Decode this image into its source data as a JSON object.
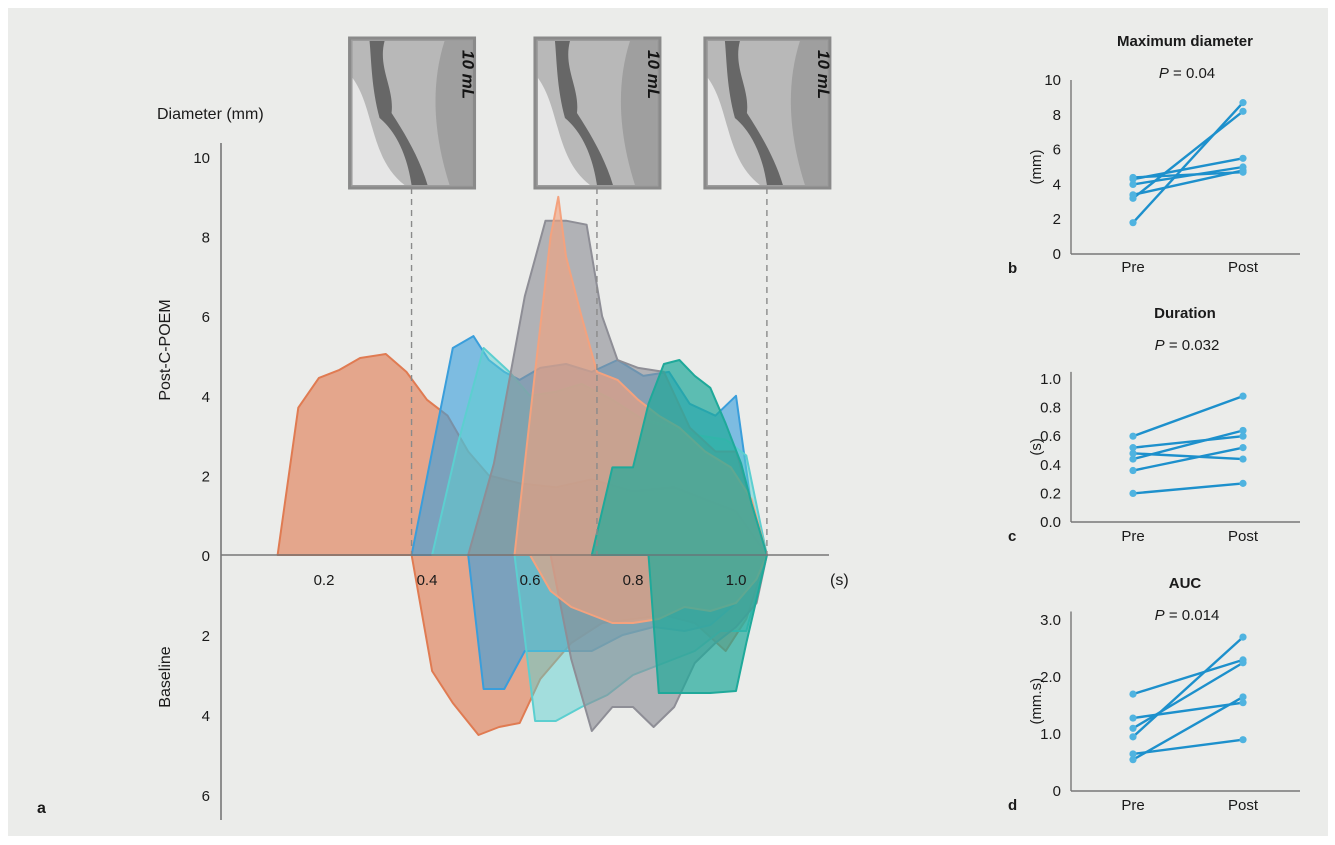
{
  "colors": {
    "panel_bg": "#ebecea",
    "axis": "#777777",
    "guide": "#8a8a8a",
    "pair_line": "#1d90cc",
    "pair_dot": "#4fb3e0"
  },
  "panel_letters": {
    "a": "a",
    "b": "b",
    "c": "c",
    "d": "d"
  },
  "fluoro_frames": [
    {
      "label": "10 mL",
      "time_s": 0.37
    },
    {
      "label": "10 mL",
      "time_s": 0.73
    },
    {
      "label": "10 mL",
      "time_s": 1.06
    }
  ],
  "chart_data": [
    {
      "panel": "a",
      "type": "area",
      "ylabel": "Diameter (mm)",
      "xlabel": "(s)",
      "upper_label": "Post-C-POEM",
      "lower_label": "Baseline",
      "x_ticks": [
        0.2,
        0.4,
        0.6,
        0.8,
        1.0
      ],
      "x_tick_labels": [
        "0.2",
        "0.4",
        "0.6",
        "0.8",
        "1.0"
      ],
      "xlim": [
        0.0,
        1.16
      ],
      "y_ticks_up": [
        0,
        2,
        4,
        6,
        8,
        10
      ],
      "y_ticks_down": [
        2,
        4,
        6
      ],
      "ylim_up": [
        0,
        10
      ],
      "ylim_down": [
        0,
        6.5
      ],
      "series": [
        {
          "color": "#e07b52",
          "opacity": 0.62,
          "post": [
            [
              0.11,
              0
            ],
            [
              0.15,
              3.7
            ],
            [
              0.19,
              4.45
            ],
            [
              0.23,
              4.65
            ],
            [
              0.27,
              4.95
            ],
            [
              0.32,
              5.05
            ],
            [
              0.36,
              4.6
            ],
            [
              0.4,
              3.9
            ],
            [
              0.44,
              3.5
            ],
            [
              0.48,
              2.6
            ],
            [
              0.52,
              2.0
            ],
            [
              0.58,
              1.8
            ],
            [
              0.65,
              1.7
            ],
            [
              0.72,
              1.9
            ],
            [
              0.8,
              1.6
            ],
            [
              0.88,
              1.7
            ],
            [
              0.96,
              1.3
            ],
            [
              1.0,
              1.1
            ],
            [
              1.06,
              0
            ]
          ],
          "base": [
            [
              0.37,
              0
            ],
            [
              0.41,
              2.9
            ],
            [
              0.45,
              3.7
            ],
            [
              0.5,
              4.5
            ],
            [
              0.54,
              4.3
            ],
            [
              0.58,
              4.2
            ],
            [
              0.62,
              3.1
            ],
            [
              0.68,
              2.2
            ],
            [
              0.74,
              1.7
            ],
            [
              0.8,
              1.6
            ],
            [
              0.86,
              1.5
            ],
            [
              0.92,
              1.7
            ],
            [
              0.98,
              2.4
            ],
            [
              1.02,
              1.6
            ],
            [
              1.06,
              0
            ]
          ]
        },
        {
          "color": "#3a9edb",
          "opacity": 0.62,
          "post": [
            [
              0.37,
              0
            ],
            [
              0.41,
              2.6
            ],
            [
              0.45,
              5.2
            ],
            [
              0.49,
              5.5
            ],
            [
              0.52,
              4.9
            ],
            [
              0.55,
              4.6
            ],
            [
              0.58,
              4.4
            ],
            [
              0.62,
              4.7
            ],
            [
              0.67,
              4.8
            ],
            [
              0.72,
              4.6
            ],
            [
              0.77,
              4.9
            ],
            [
              0.82,
              4.5
            ],
            [
              0.87,
              4.6
            ],
            [
              0.91,
              3.8
            ],
            [
              0.96,
              3.5
            ],
            [
              1.0,
              4.0
            ],
            [
              1.03,
              1.2
            ],
            [
              1.06,
              0
            ]
          ],
          "base": [
            [
              0.48,
              0
            ],
            [
              0.51,
              3.35
            ],
            [
              0.55,
              3.35
            ],
            [
              0.59,
              2.4
            ],
            [
              0.65,
              2.4
            ],
            [
              0.72,
              2.4
            ],
            [
              0.78,
              2.0
            ],
            [
              0.84,
              1.8
            ],
            [
              0.9,
              1.9
            ],
            [
              0.95,
              1.75
            ],
            [
              1.0,
              1.2
            ],
            [
              1.04,
              0.6
            ],
            [
              1.06,
              0
            ]
          ]
        },
        {
          "color": "#5ccfd0",
          "opacity": 0.5,
          "post": [
            [
              0.41,
              0
            ],
            [
              0.46,
              2.8
            ],
            [
              0.51,
              5.2
            ],
            [
              0.56,
              4.6
            ],
            [
              0.6,
              4.0
            ],
            [
              0.65,
              4.1
            ],
            [
              0.7,
              4.3
            ],
            [
              0.76,
              3.9
            ],
            [
              0.82,
              3.4
            ],
            [
              0.88,
              3.2
            ],
            [
              0.93,
              3.0
            ],
            [
              0.98,
              2.9
            ],
            [
              1.02,
              2.5
            ],
            [
              1.06,
              0
            ]
          ],
          "base": [
            [
              0.57,
              0
            ],
            [
              0.61,
              4.15
            ],
            [
              0.65,
              4.15
            ],
            [
              0.7,
              3.8
            ],
            [
              0.75,
              3.5
            ],
            [
              0.8,
              3.0
            ],
            [
              0.86,
              2.7
            ],
            [
              0.92,
              2.4
            ],
            [
              0.97,
              1.9
            ],
            [
              1.02,
              1.9
            ],
            [
              1.06,
              0
            ]
          ]
        },
        {
          "color": "#8e8e96",
          "opacity": 0.62,
          "post": [
            [
              0.48,
              0
            ],
            [
              0.53,
              2.3
            ],
            [
              0.59,
              6.5
            ],
            [
              0.63,
              8.4
            ],
            [
              0.67,
              8.4
            ],
            [
              0.71,
              8.3
            ],
            [
              0.74,
              6.0
            ],
            [
              0.77,
              4.9
            ],
            [
              0.81,
              4.7
            ],
            [
              0.86,
              4.6
            ],
            [
              0.91,
              3.2
            ],
            [
              0.96,
              2.6
            ],
            [
              1.0,
              2.6
            ],
            [
              1.03,
              1.3
            ],
            [
              1.06,
              0
            ]
          ],
          "base": [
            [
              0.64,
              0
            ],
            [
              0.68,
              2.6
            ],
            [
              0.72,
              4.4
            ],
            [
              0.76,
              3.8
            ],
            [
              0.8,
              3.8
            ],
            [
              0.84,
              4.3
            ],
            [
              0.88,
              3.8
            ],
            [
              0.92,
              2.7
            ],
            [
              0.96,
              2.2
            ],
            [
              1.0,
              1.8
            ],
            [
              1.04,
              1.2
            ],
            [
              1.06,
              0
            ]
          ]
        },
        {
          "color": "#f4a27e",
          "opacity": 0.62,
          "post": [
            [
              0.57,
              0
            ],
            [
              0.61,
              4.6
            ],
            [
              0.64,
              8.0
            ],
            [
              0.655,
              9.0
            ],
            [
              0.67,
              7.5
            ],
            [
              0.7,
              6.0
            ],
            [
              0.73,
              4.6
            ],
            [
              0.77,
              4.4
            ],
            [
              0.81,
              3.9
            ],
            [
              0.85,
              3.5
            ],
            [
              0.89,
              3.2
            ],
            [
              0.94,
              2.6
            ],
            [
              0.99,
              2.2
            ],
            [
              1.03,
              1.4
            ],
            [
              1.06,
              0
            ]
          ],
          "base": [
            [
              0.6,
              0
            ],
            [
              0.64,
              0.9
            ],
            [
              0.68,
              1.3
            ],
            [
              0.72,
              1.5
            ],
            [
              0.76,
              1.7
            ],
            [
              0.8,
              1.7
            ],
            [
              0.85,
              1.6
            ],
            [
              0.9,
              1.3
            ],
            [
              0.95,
              1.4
            ],
            [
              1.0,
              1.2
            ],
            [
              1.04,
              0.6
            ],
            [
              1.06,
              0
            ]
          ]
        },
        {
          "color": "#1fa99a",
          "opacity": 0.7,
          "post": [
            [
              0.72,
              0
            ],
            [
              0.76,
              2.2
            ],
            [
              0.8,
              2.2
            ],
            [
              0.83,
              3.8
            ],
            [
              0.86,
              4.8
            ],
            [
              0.89,
              4.9
            ],
            [
              0.92,
              4.5
            ],
            [
              0.95,
              4.2
            ],
            [
              0.98,
              3.3
            ],
            [
              1.01,
              2.3
            ],
            [
              1.03,
              1.3
            ],
            [
              1.06,
              0
            ]
          ],
          "base": [
            [
              0.83,
              0
            ],
            [
              0.85,
              3.45
            ],
            [
              0.9,
              3.45
            ],
            [
              0.95,
              3.45
            ],
            [
              1.0,
              3.4
            ],
            [
              1.02,
              2.2
            ],
            [
              1.04,
              1.1
            ],
            [
              1.06,
              0
            ]
          ]
        }
      ]
    },
    {
      "panel": "b",
      "type": "line",
      "title": "Maximum diameter",
      "p_label": "P",
      "p_value": "= 0.04",
      "ylabel": "(mm)",
      "categories": [
        "Pre",
        "Post"
      ],
      "ylim": [
        0,
        10
      ],
      "y_ticks": [
        0,
        2,
        4,
        6,
        8,
        10
      ],
      "y_tick_labels": [
        "0",
        "2",
        "4",
        "6",
        "8",
        "10"
      ],
      "pairs": [
        [
          1.8,
          8.7
        ],
        [
          3.2,
          8.2
        ],
        [
          3.4,
          4.8
        ],
        [
          4.0,
          5.0
        ],
        [
          4.3,
          5.5
        ],
        [
          4.4,
          4.7
        ]
      ]
    },
    {
      "panel": "c",
      "type": "line",
      "title": "Duration",
      "p_label": "P",
      "p_value": "= 0.032",
      "ylabel": "(s)",
      "categories": [
        "Pre",
        "Post"
      ],
      "ylim": [
        0,
        1.05
      ],
      "y_ticks": [
        0,
        0.2,
        0.4,
        0.6,
        0.8,
        1.0
      ],
      "y_tick_labels": [
        "0.0",
        "0.2",
        "0.4",
        "0.6",
        "0.8",
        "1.0"
      ],
      "pairs": [
        [
          0.2,
          0.27
        ],
        [
          0.36,
          0.52
        ],
        [
          0.44,
          0.64
        ],
        [
          0.48,
          0.44
        ],
        [
          0.52,
          0.6
        ],
        [
          0.6,
          0.88
        ]
      ]
    },
    {
      "panel": "d",
      "type": "line",
      "title": "AUC",
      "p_label": "P",
      "p_value": "= 0.014",
      "ylabel": "(mm.s)",
      "categories": [
        "Pre",
        "Post"
      ],
      "ylim": [
        0,
        3.15
      ],
      "y_ticks": [
        0,
        1,
        2,
        3
      ],
      "y_tick_labels": [
        "0",
        "1.0",
        "2.0",
        "3.0"
      ],
      "pairs": [
        [
          0.55,
          1.65
        ],
        [
          0.65,
          0.9
        ],
        [
          0.95,
          2.7
        ],
        [
          1.1,
          2.25
        ],
        [
          1.28,
          1.55
        ],
        [
          1.7,
          2.3
        ]
      ]
    }
  ]
}
